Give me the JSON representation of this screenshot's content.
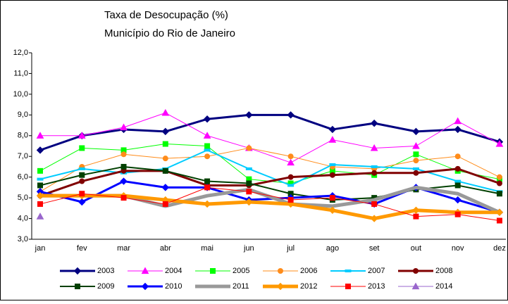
{
  "chart_data": {
    "type": "line",
    "title": "Taxa de Desocupação (%)",
    "subtitle": "Município do Rio de Janeiro",
    "categories": [
      "jan",
      "fev",
      "mar",
      "abr",
      "mai",
      "jun",
      "jul",
      "ago",
      "set",
      "out",
      "nov",
      "dez"
    ],
    "ylim": [
      3,
      12
    ],
    "yticks": [
      {
        "value": 3,
        "label": "3,0"
      },
      {
        "value": 4,
        "label": "4,0"
      },
      {
        "value": 5,
        "label": "5,0"
      },
      {
        "value": 6,
        "label": "6,0"
      },
      {
        "value": 7,
        "label": "7,0"
      },
      {
        "value": 8,
        "label": "8,0"
      },
      {
        "value": 9,
        "label": "9,0"
      },
      {
        "value": 10,
        "label": "10,0"
      },
      {
        "value": 11,
        "label": "11,0"
      },
      {
        "value": 12,
        "label": "12,0"
      }
    ],
    "grid": false,
    "series": [
      {
        "name": "2003",
        "color": "#000080",
        "marker": "diamond",
        "width": 3,
        "values": [
          7.3,
          8.0,
          8.3,
          8.2,
          8.8,
          9.0,
          9.0,
          8.3,
          8.6,
          8.2,
          8.3,
          7.7
        ]
      },
      {
        "name": "2004",
        "color": "#ff00ff",
        "marker": "triangle",
        "width": 1,
        "values": [
          8.0,
          8.0,
          8.4,
          9.1,
          8.0,
          7.4,
          6.7,
          7.8,
          7.4,
          7.5,
          8.7,
          7.6
        ]
      },
      {
        "name": "2005",
        "color": "#00ff00",
        "marker": "square",
        "width": 1,
        "values": [
          6.3,
          7.4,
          7.3,
          7.6,
          7.5,
          5.9,
          5.7,
          6.3,
          6.1,
          7.1,
          6.3,
          5.9
        ]
      },
      {
        "name": "2006",
        "color": "#ff8c1a",
        "marker": "circle",
        "width": 1,
        "values": [
          5.3,
          6.5,
          7.1,
          6.9,
          7.0,
          7.4,
          7.0,
          6.5,
          6.4,
          6.8,
          7.0,
          6.0
        ]
      },
      {
        "name": "2007",
        "color": "#00ccff",
        "marker": "dash",
        "width": 2,
        "values": [
          5.9,
          6.4,
          6.2,
          6.4,
          7.3,
          6.4,
          5.6,
          6.6,
          6.5,
          6.4,
          5.8,
          5.3
        ]
      },
      {
        "name": "2008",
        "color": "#800000",
        "marker": "circle",
        "width": 3,
        "values": [
          5.1,
          5.8,
          6.3,
          6.3,
          5.6,
          5.6,
          6.0,
          6.1,
          6.2,
          6.2,
          6.4,
          5.7
        ]
      },
      {
        "name": "2009",
        "color": "#004000",
        "marker": "square",
        "width": 2,
        "values": [
          5.6,
          6.1,
          6.5,
          6.3,
          5.8,
          5.7,
          5.2,
          4.9,
          5.0,
          5.4,
          5.6,
          5.2
        ]
      },
      {
        "name": "2010",
        "color": "#0000ff",
        "marker": "diamond",
        "width": 3,
        "values": [
          5.3,
          4.8,
          5.8,
          5.5,
          5.5,
          4.9,
          5.0,
          5.1,
          4.7,
          5.5,
          4.9,
          4.3
        ]
      },
      {
        "name": "2011",
        "color": "#999999",
        "marker": "none",
        "width": 5,
        "values": [
          5.1,
          5.1,
          5.1,
          4.6,
          5.1,
          5.4,
          4.7,
          4.6,
          4.9,
          5.5,
          5.2,
          4.3
        ]
      },
      {
        "name": "2012",
        "color": "#ff9900",
        "marker": "diamond",
        "width": 5,
        "values": [
          5.1,
          5.1,
          5.1,
          4.9,
          4.7,
          4.8,
          4.7,
          4.4,
          4.0,
          4.4,
          4.3,
          4.3
        ]
      },
      {
        "name": "2013",
        "color": "#ff0000",
        "marker": "square",
        "width": 1,
        "values": [
          4.7,
          5.2,
          5.0,
          4.7,
          5.5,
          5.3,
          4.9,
          5.0,
          4.7,
          4.1,
          4.2,
          3.9
        ]
      },
      {
        "name": "2014",
        "color": "#9966cc",
        "marker": "triangle",
        "width": 1,
        "values": [
          4.1,
          null,
          null,
          null,
          null,
          null,
          null,
          null,
          null,
          null,
          null,
          null
        ]
      }
    ]
  }
}
